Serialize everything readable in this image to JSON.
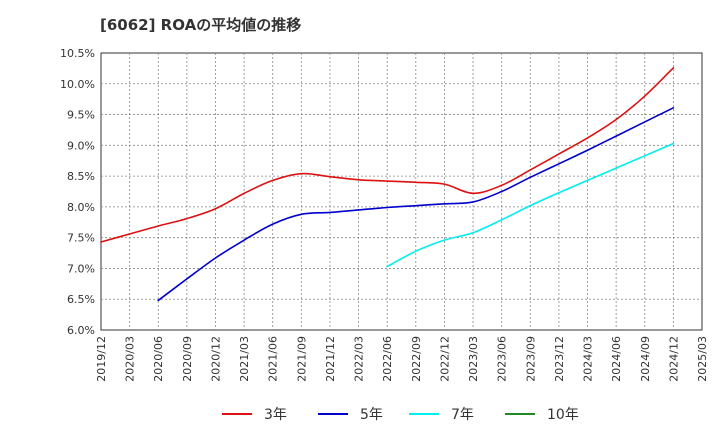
{
  "chart_data": {
    "type": "line",
    "title": "[6062]  ROAの平均値の推移",
    "xlabel": "",
    "ylabel": "",
    "ylim": [
      6.0,
      10.5
    ],
    "y_ticks": [
      "6.0%",
      "6.5%",
      "7.0%",
      "7.5%",
      "8.0%",
      "8.5%",
      "9.0%",
      "9.5%",
      "10.0%",
      "10.5%"
    ],
    "x_ticks": [
      "2019/12",
      "2020/03",
      "2020/06",
      "2020/09",
      "2020/12",
      "2021/03",
      "2021/06",
      "2021/09",
      "2021/12",
      "2022/03",
      "2022/06",
      "2022/09",
      "2022/12",
      "2023/03",
      "2023/06",
      "2023/09",
      "2023/12",
      "2024/03",
      "2024/06",
      "2024/09",
      "2024/12",
      "2025/03"
    ],
    "grid": true,
    "legend_position": "bottom",
    "series": [
      {
        "name": "3年",
        "color": "#dd1111",
        "x": [
          "2019/12",
          "2020/03",
          "2020/06",
          "2020/09",
          "2020/12",
          "2021/03",
          "2021/06",
          "2021/09",
          "2021/12",
          "2022/03",
          "2022/06",
          "2022/09",
          "2022/12",
          "2023/03",
          "2023/06",
          "2023/09",
          "2023/12",
          "2024/03",
          "2024/06",
          "2024/09",
          "2024/12"
        ],
        "values": [
          7.43,
          7.56,
          7.69,
          7.81,
          7.97,
          8.22,
          8.43,
          8.54,
          8.49,
          8.44,
          8.42,
          8.4,
          8.37,
          8.22,
          8.35,
          8.6,
          8.86,
          9.12,
          9.42,
          9.8,
          10.26
        ]
      },
      {
        "name": "5年",
        "color": "#0000cc",
        "x": [
          "2020/06",
          "2020/09",
          "2020/12",
          "2021/03",
          "2021/06",
          "2021/09",
          "2021/12",
          "2022/03",
          "2022/06",
          "2022/09",
          "2022/12",
          "2023/03",
          "2023/06",
          "2023/09",
          "2023/12",
          "2024/03",
          "2024/06",
          "2024/09",
          "2024/12"
        ],
        "values": [
          6.48,
          6.83,
          7.17,
          7.46,
          7.72,
          7.88,
          7.91,
          7.95,
          7.99,
          8.02,
          8.05,
          8.08,
          8.25,
          8.48,
          8.7,
          8.92,
          9.15,
          9.38,
          9.61
        ]
      },
      {
        "name": "7年",
        "color": "#00eeee",
        "x": [
          "2022/06",
          "2022/09",
          "2022/12",
          "2023/03",
          "2023/06",
          "2023/09",
          "2023/12",
          "2024/03",
          "2024/06",
          "2024/09",
          "2024/12"
        ],
        "values": [
          7.03,
          7.28,
          7.46,
          7.58,
          7.79,
          8.02,
          8.23,
          8.43,
          8.63,
          8.83,
          9.03
        ]
      },
      {
        "name": "10年",
        "color": "#228822",
        "x": [],
        "values": []
      }
    ]
  }
}
